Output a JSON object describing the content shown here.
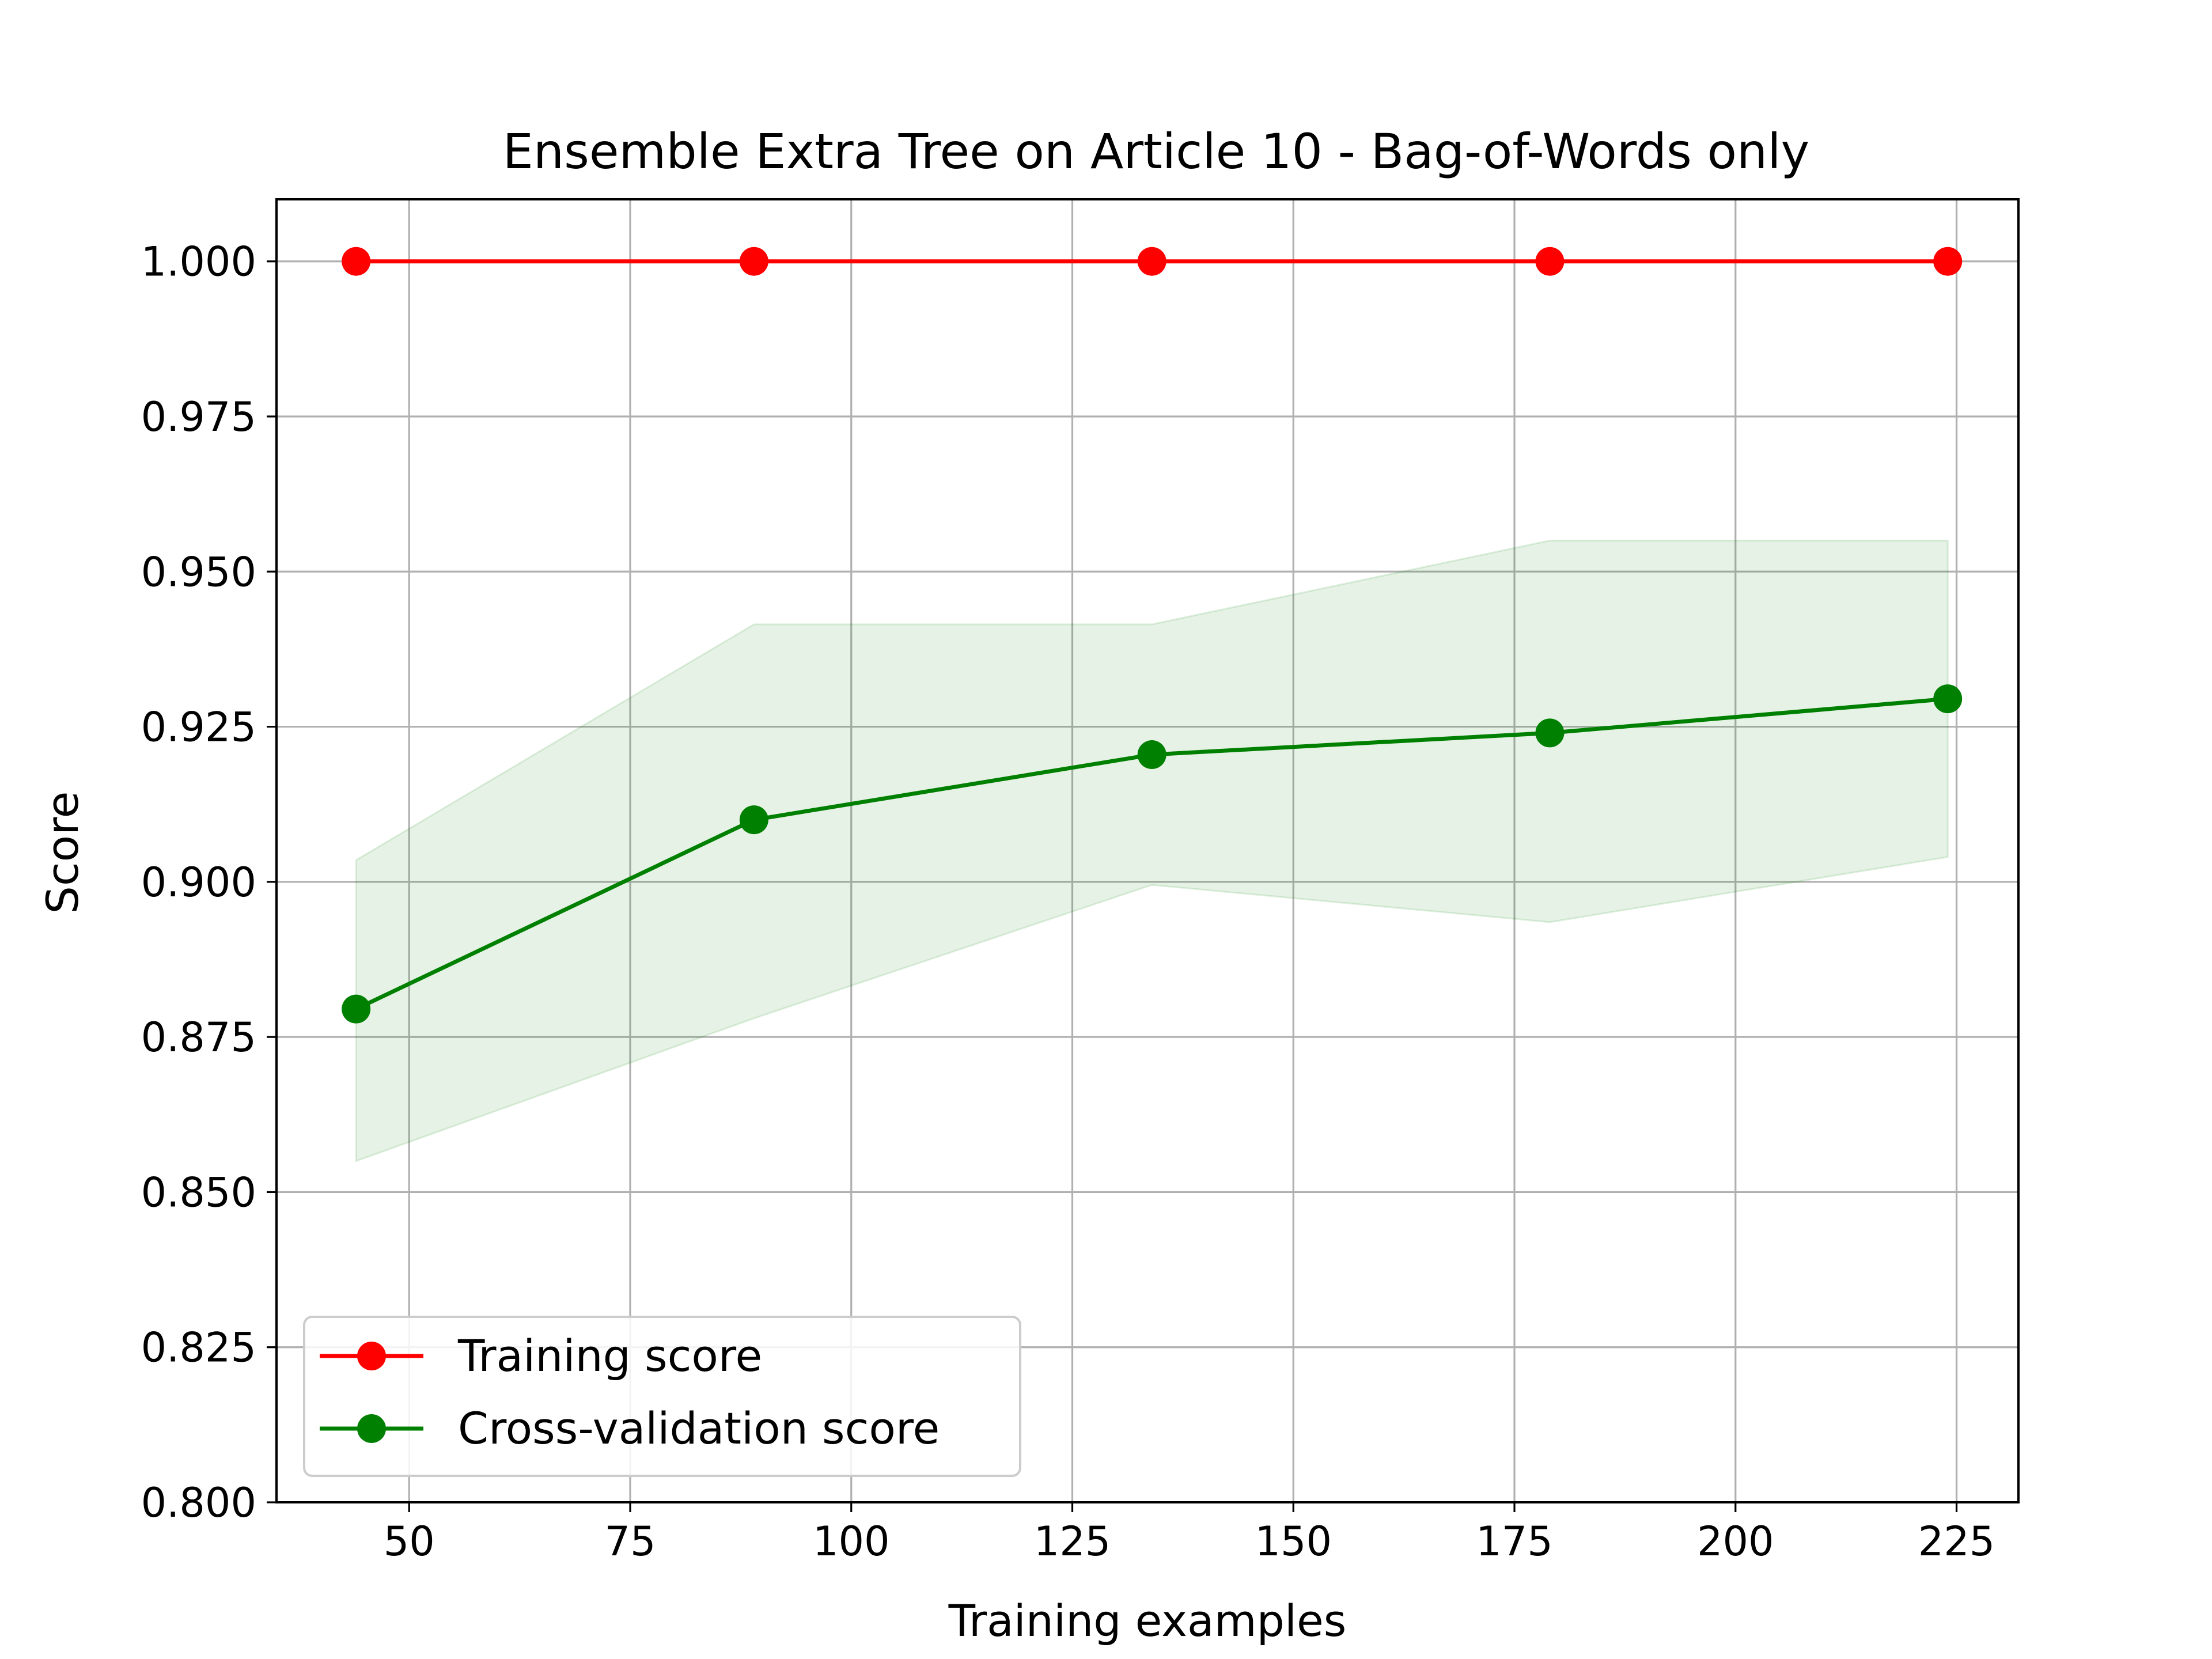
{
  "chart_data": {
    "type": "line",
    "title": "Ensemble Extra Tree on Article 10 - Bag-of-Words only",
    "xlabel": "Training examples",
    "ylabel": "Score",
    "xlim": [
      35,
      232
    ],
    "ylim": [
      0.8,
      1.01
    ],
    "grid": true,
    "legend_position": "lower-left",
    "x_ticks": [
      50,
      75,
      100,
      125,
      150,
      175,
      200,
      225
    ],
    "y_ticks": [
      0.8,
      0.825,
      0.85,
      0.875,
      0.9,
      0.925,
      0.95,
      0.975,
      1.0
    ],
    "x_tick_labels": [
      "50",
      "75",
      "100",
      "125",
      "150",
      "175",
      "200",
      "225"
    ],
    "y_tick_labels": [
      "0.800",
      "0.825",
      "0.850",
      "0.875",
      "0.900",
      "0.925",
      "0.950",
      "0.975",
      "1.000"
    ],
    "x": [
      44,
      89,
      134,
      179,
      224
    ],
    "series": [
      {
        "name": "Training score",
        "color": "#ff0000",
        "values": [
          1.0,
          1.0,
          1.0,
          1.0,
          1.0
        ]
      },
      {
        "name": "Cross-validation score",
        "color": "#008000",
        "values": [
          0.8795,
          0.91,
          0.9205,
          0.924,
          0.9295
        ],
        "band_lower": [
          0.855,
          0.878,
          0.8995,
          0.8935,
          0.904
        ],
        "band_upper": [
          0.9035,
          0.9415,
          0.9415,
          0.955,
          0.955
        ],
        "band_color": "#008000"
      }
    ]
  }
}
